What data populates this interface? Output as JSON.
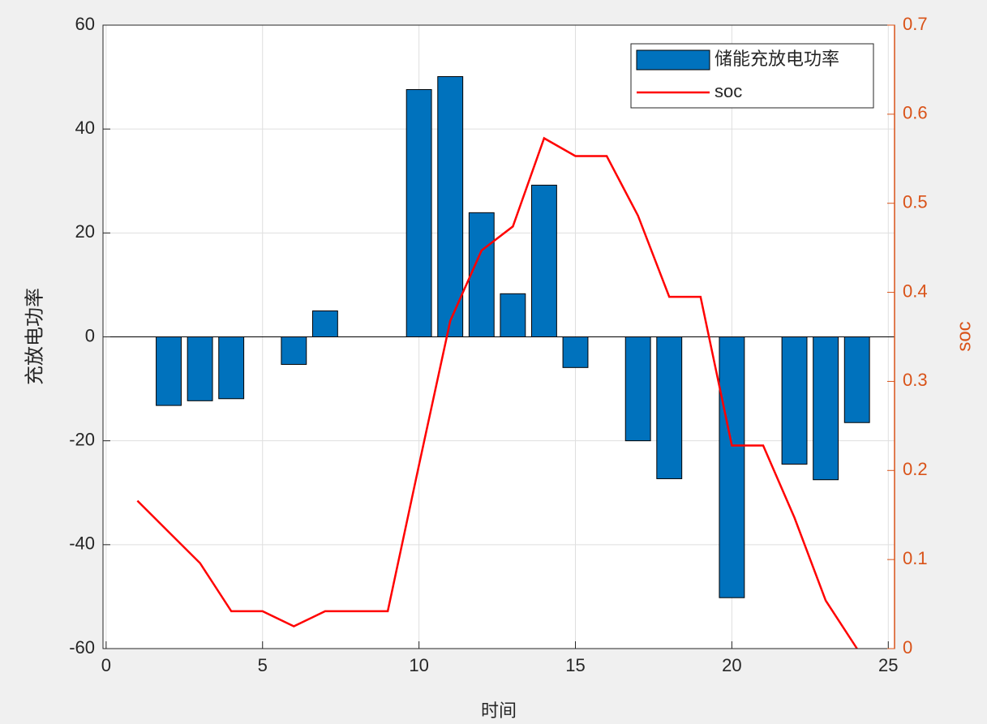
{
  "chart_data": {
    "type": "bar",
    "xlabel": "时间",
    "ylabel": "充放电功率",
    "y2label": "soc",
    "x": [
      1,
      2,
      3,
      4,
      5,
      6,
      7,
      8,
      9,
      10,
      11,
      12,
      13,
      14,
      15,
      16,
      17,
      18,
      19,
      20,
      21,
      22,
      23,
      24
    ],
    "series": [
      {
        "name": "储能充放电功率",
        "type": "bar",
        "color": "#0072bd",
        "values": [
          0,
          -13.2,
          -12.3,
          -11.9,
          0,
          -5.3,
          5.0,
          0,
          0,
          47.6,
          50.1,
          23.9,
          8.3,
          29.2,
          -5.9,
          0,
          -20,
          -27.3,
          0,
          -50.2,
          0,
          -24.5,
          -27.5,
          -16.5
        ]
      },
      {
        "name": "soc",
        "type": "line",
        "axis": "y2",
        "color": "#ff0000",
        "values": [
          0.166,
          0.131,
          0.096,
          0.042,
          0.042,
          0.025,
          0.042,
          0.042,
          0.042,
          0.206,
          0.368,
          0.447,
          0.474,
          0.573,
          0.553,
          0.553,
          0.486,
          0.395,
          0.395,
          0.228,
          0.228,
          0.147,
          0.054,
          0
        ]
      }
    ],
    "xlim": [
      -0.1,
      25.2
    ],
    "xticks": [
      0,
      5,
      10,
      15,
      20,
      25
    ],
    "ylim": [
      -60,
      60
    ],
    "yticks": [
      -60,
      -40,
      -20,
      0,
      20,
      40,
      60
    ],
    "y2lim": [
      0,
      0.7
    ],
    "y2ticks": [
      0,
      0.1,
      0.2,
      0.3,
      0.4,
      0.5,
      0.6,
      0.7
    ],
    "y2color": "#d95319",
    "grid": true,
    "legend": "northeast"
  }
}
